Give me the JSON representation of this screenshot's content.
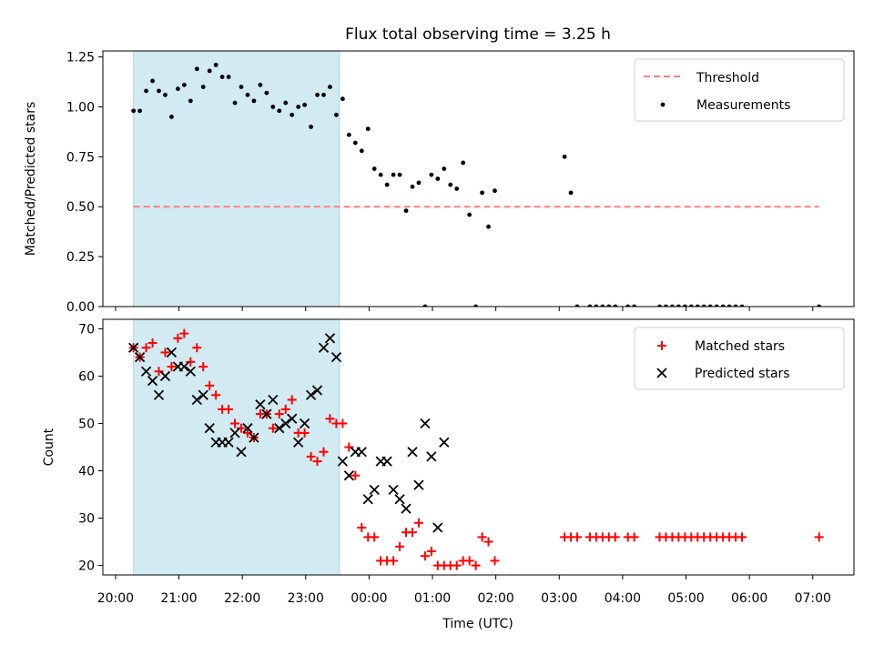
{
  "title": "Flux total observing time = 3.25 h",
  "xlabel": "Time (UTC)",
  "x_ticks": [
    "20:00",
    "21:00",
    "22:00",
    "23:00",
    "00:00",
    "01:00",
    "02:00",
    "03:00",
    "04:00",
    "05:00",
    "06:00",
    "07:00"
  ],
  "colors": {
    "shade": "#add8e6",
    "threshold": "#ff7f7f",
    "matched": "#ff0000",
    "predicted": "#000000",
    "measure": "#000000"
  },
  "chart_data": [
    {
      "type": "scatter",
      "ylabel": "Matched/Predicted stars",
      "ylim": [
        0,
        1.28
      ],
      "y_ticks": [
        "0.00",
        "0.25",
        "0.50",
        "0.75",
        "1.00",
        "1.25"
      ],
      "xlim_hours": [
        19.8,
        31.65
      ],
      "shaded_span": [
        "20:17",
        "23:32"
      ],
      "threshold": {
        "name": "Threshold",
        "value": 0.5,
        "x_range": [
          "20:17",
          "07:06"
        ]
      },
      "legend": {
        "position": "top-right",
        "entries": [
          "Threshold",
          "Measurements"
        ]
      },
      "series": [
        {
          "name": "Measurements",
          "x": [
            "20:17",
            "20:23",
            "20:29",
            "20:35",
            "20:41",
            "20:47",
            "20:53",
            "20:59",
            "21:05",
            "21:11",
            "21:17",
            "21:23",
            "21:29",
            "21:35",
            "21:41",
            "21:47",
            "21:53",
            "21:59",
            "22:05",
            "22:11",
            "22:17",
            "22:23",
            "22:29",
            "22:35",
            "22:41",
            "22:47",
            "22:53",
            "22:59",
            "23:05",
            "23:11",
            "23:17",
            "23:23",
            "23:29",
            "23:35",
            "23:41",
            "23:47",
            "23:53",
            "23:59",
            "00:05",
            "00:11",
            "00:17",
            "00:23",
            "00:29",
            "00:35",
            "00:41",
            "00:47",
            "00:53",
            "00:59",
            "01:05",
            "01:11",
            "01:17",
            "01:23",
            "01:29",
            "01:35",
            "01:41",
            "01:47",
            "01:53",
            "01:59",
            "03:05",
            "03:11",
            "03:17",
            "03:29",
            "03:35",
            "03:41",
            "03:47",
            "03:53",
            "04:05",
            "04:11",
            "04:35",
            "04:41",
            "04:47",
            "04:53",
            "04:59",
            "05:05",
            "05:11",
            "05:17",
            "05:23",
            "05:29",
            "05:35",
            "05:41",
            "05:47",
            "05:53",
            "07:06"
          ],
          "y": [
            0.98,
            0.98,
            1.08,
            1.13,
            1.08,
            1.06,
            0.95,
            1.09,
            1.11,
            1.03,
            1.19,
            1.1,
            1.18,
            1.21,
            1.15,
            1.15,
            1.02,
            1.1,
            1.06,
            1.03,
            1.11,
            1.07,
            1.0,
            0.98,
            1.02,
            0.96,
            1.0,
            1.01,
            0.9,
            1.06,
            1.06,
            1.1,
            0.96,
            1.04,
            0.86,
            0.82,
            0.78,
            0.89,
            0.69,
            0.66,
            0.61,
            0.66,
            0.66,
            0.48,
            0.6,
            0.62,
            0,
            0.66,
            0.64,
            0.69,
            0.61,
            0.59,
            0.72,
            0.46,
            0,
            0.57,
            0.4,
            0.58,
            0.75,
            0.57,
            0,
            0,
            0,
            0,
            0,
            0,
            0,
            0,
            0,
            0,
            0,
            0,
            0,
            0,
            0,
            0,
            0,
            0,
            0,
            0,
            0,
            0,
            0
          ]
        }
      ]
    },
    {
      "type": "scatter",
      "ylabel": "Count",
      "ylim": [
        18,
        72
      ],
      "y_ticks": [
        "20",
        "30",
        "40",
        "50",
        "60",
        "70"
      ],
      "shaded_span": [
        "20:17",
        "23:32"
      ],
      "legend": {
        "position": "top-right",
        "entries": [
          "Matched stars",
          "Predicted stars"
        ]
      },
      "series": [
        {
          "name": "Matched stars",
          "x": [
            "20:17",
            "20:23",
            "20:29",
            "20:35",
            "20:41",
            "20:47",
            "20:53",
            "20:59",
            "21:05",
            "21:11",
            "21:17",
            "21:23",
            "21:29",
            "21:35",
            "21:41",
            "21:47",
            "21:53",
            "21:59",
            "22:05",
            "22:11",
            "22:17",
            "22:23",
            "22:29",
            "22:35",
            "22:41",
            "22:47",
            "22:53",
            "22:59",
            "23:05",
            "23:11",
            "23:17",
            "23:23",
            "23:29",
            "23:35",
            "23:41",
            "23:47",
            "23:53",
            "23:59",
            "00:05",
            "00:11",
            "00:17",
            "00:23",
            "00:29",
            "00:35",
            "00:41",
            "00:47",
            "00:53",
            "00:59",
            "01:05",
            "01:11",
            "01:17",
            "01:23",
            "01:29",
            "01:35",
            "01:41",
            "01:47",
            "01:53",
            "01:59",
            "03:05",
            "03:11",
            "03:17",
            "03:29",
            "03:35",
            "03:41",
            "03:47",
            "03:53",
            "04:05",
            "04:11",
            "04:35",
            "04:41",
            "04:47",
            "04:53",
            "04:59",
            "05:05",
            "05:11",
            "05:17",
            "05:23",
            "05:29",
            "05:35",
            "05:41",
            "05:47",
            "05:53",
            "07:06"
          ],
          "y": [
            66,
            64,
            66,
            67,
            61,
            65,
            62,
            68,
            69,
            63,
            66,
            62,
            58,
            56,
            53,
            53,
            50,
            49,
            48,
            47,
            52,
            52,
            49,
            52,
            53,
            55,
            48,
            48,
            43,
            42,
            44,
            51,
            50,
            50,
            45,
            39,
            28,
            26,
            26,
            21,
            21,
            21,
            24,
            27,
            27,
            29,
            22,
            23,
            20,
            20,
            20,
            20,
            21,
            21,
            20,
            26,
            25,
            21,
            26,
            26,
            26,
            26,
            26,
            26,
            26,
            26,
            26,
            26,
            26,
            26,
            26,
            26,
            26,
            26,
            26,
            26,
            26,
            26,
            26,
            26,
            26,
            26,
            26
          ]
        },
        {
          "name": "Predicted stars",
          "x": [
            "20:17",
            "20:23",
            "20:29",
            "20:35",
            "20:41",
            "20:47",
            "20:53",
            "20:59",
            "21:05",
            "21:11",
            "21:17",
            "21:23",
            "21:29",
            "21:35",
            "21:41",
            "21:47",
            "21:53",
            "21:59",
            "22:05",
            "22:11",
            "22:17",
            "22:23",
            "22:29",
            "22:35",
            "22:41",
            "22:47",
            "22:53",
            "22:59",
            "23:05",
            "23:11",
            "23:17",
            "23:23",
            "23:29",
            "23:35",
            "23:41",
            "23:47",
            "23:53",
            "23:59",
            "00:05",
            "00:11",
            "00:17",
            "00:23",
            "00:29",
            "00:35",
            "00:41",
            "00:47",
            "00:53",
            "00:59",
            "01:05",
            "01:11"
          ],
          "y": [
            66,
            64,
            61,
            59,
            56,
            60,
            65,
            62,
            62,
            61,
            55,
            56,
            49,
            46,
            46,
            46,
            48,
            44,
            49,
            47,
            54,
            52,
            55,
            49,
            50,
            51,
            46,
            50,
            56,
            57,
            66,
            68,
            64,
            42,
            39,
            44,
            44,
            34,
            36,
            42,
            42,
            36,
            34,
            32,
            44,
            37,
            50,
            43,
            28,
            46
          ]
        }
      ]
    }
  ]
}
